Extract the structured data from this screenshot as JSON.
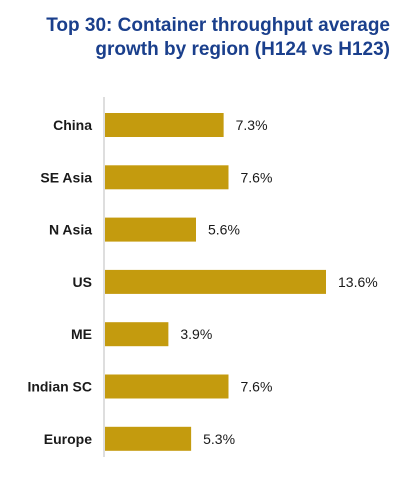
{
  "chart_data": {
    "type": "bar",
    "orientation": "horizontal",
    "title": "Top 30: Container throughput average growth by region (H124 vs H123)",
    "categories": [
      "China",
      "SE Asia",
      "N Asia",
      "US",
      "ME",
      "Indian SC",
      "Europe"
    ],
    "values": [
      7.3,
      7.6,
      5.6,
      13.6,
      3.9,
      7.6,
      5.3
    ],
    "value_labels": [
      "7.3%",
      "7.6%",
      "5.6%",
      "13.6%",
      "3.9%",
      "7.6%",
      "5.3%"
    ],
    "xlim": [
      0,
      13.6
    ],
    "bar_color": "#c49b0e",
    "title_color": "#1a3f8c",
    "grid": false,
    "legend": "none"
  }
}
